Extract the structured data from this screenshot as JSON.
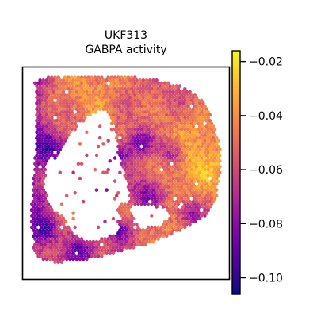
{
  "chart_data": {
    "type": "heatmap",
    "subtype": "spatial-spot-map",
    "title_lines": [
      "UKF313",
      "GABPA activity"
    ],
    "colormap": "plasma",
    "colorbar": {
      "vmin": -0.106,
      "vmax": -0.016,
      "ticks": [
        -0.02,
        -0.04,
        -0.06,
        -0.08,
        -0.1
      ],
      "tick_labels": [
        "−0.02",
        "−0.04",
        "−0.06",
        "−0.08",
        "−0.10"
      ],
      "placement": "right"
    },
    "axes_visible": false,
    "frame": true,
    "grid": false
  }
}
